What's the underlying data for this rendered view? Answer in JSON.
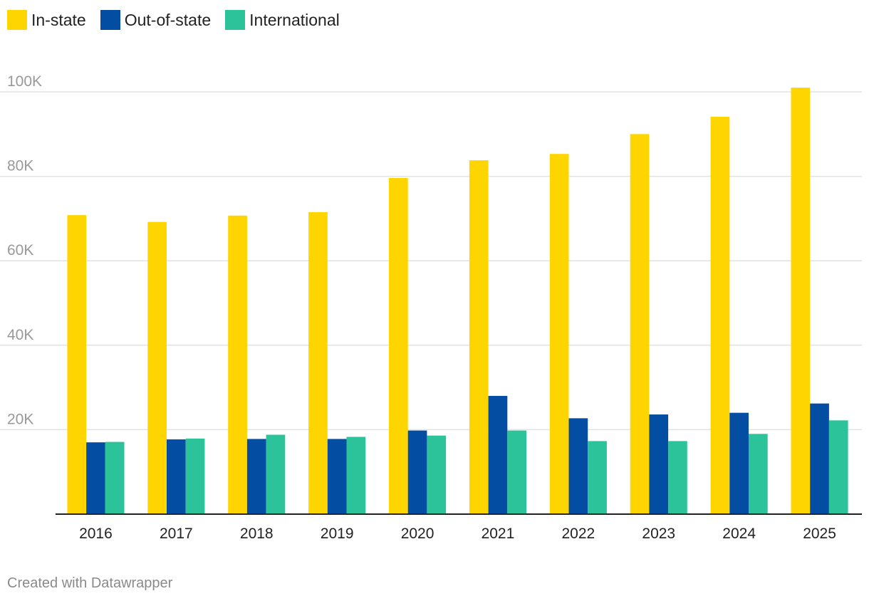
{
  "legend": {
    "items": [
      {
        "label": "In-state",
        "color": "#FFD500"
      },
      {
        "label": "Out-of-state",
        "color": "#034EA2"
      },
      {
        "label": "International",
        "color": "#2CC39A"
      }
    ]
  },
  "footer": {
    "credit": "Created with Datawrapper"
  },
  "chart_data": {
    "type": "bar",
    "title": "",
    "xlabel": "",
    "ylabel": "",
    "categories": [
      "2016",
      "2017",
      "2018",
      "2019",
      "2020",
      "2021",
      "2022",
      "2023",
      "2024",
      "2025"
    ],
    "series": [
      {
        "name": "In-state",
        "color": "#FFD500",
        "values": [
          70800,
          69200,
          70700,
          71500,
          79600,
          83800,
          85300,
          90000,
          94100,
          101000
        ]
      },
      {
        "name": "Out-of-state",
        "color": "#034EA2",
        "values": [
          17000,
          17700,
          17800,
          17800,
          19800,
          28000,
          22700,
          23600,
          24000,
          26200
        ]
      },
      {
        "name": "International",
        "color": "#2CC39A",
        "values": [
          17100,
          17900,
          18800,
          18300,
          18600,
          19800,
          17300,
          17300,
          19000,
          22200
        ]
      }
    ],
    "ylim": [
      0,
      100000
    ],
    "yticks": [
      20000,
      40000,
      60000,
      80000,
      100000
    ],
    "ytick_labels": [
      "20K",
      "40K",
      "60K",
      "80K",
      "100K"
    ],
    "grid": true,
    "legend_position": "top-left"
  }
}
